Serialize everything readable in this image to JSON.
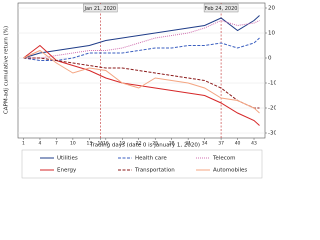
{
  "chart_data": {
    "type": "line",
    "xlabel": "Trading days (date 0 is January 1, 2020)",
    "ylabel": "CAPM-adj cumulative return (%)",
    "x": [
      1,
      4,
      7,
      10,
      13,
      16,
      19,
      22,
      25,
      28,
      31,
      34,
      37,
      40,
      43,
      44
    ],
    "series": [
      {
        "name": "Utilities",
        "color": "#1f3c88",
        "style": "solid",
        "values": [
          0,
          2,
          3,
          4,
          5,
          7,
          8,
          9,
          10,
          11,
          12,
          13,
          16,
          11,
          15,
          17
        ]
      },
      {
        "name": "Health care",
        "color": "#3b5fc0",
        "style": "dashed",
        "values": [
          0,
          -1,
          -1,
          0,
          2,
          2,
          2,
          3,
          4,
          4,
          5,
          5,
          6,
          4,
          6,
          8
        ]
      },
      {
        "name": "Telecom",
        "color": "#d070b0",
        "style": "dotted",
        "values": [
          0,
          0,
          1,
          2,
          3,
          3,
          4,
          6,
          8,
          9,
          10,
          12,
          15,
          13,
          14,
          15
        ]
      },
      {
        "name": "Energy",
        "color": "#d62728",
        "style": "solid",
        "values": [
          0,
          5,
          -1,
          -3,
          -5,
          -8,
          -10,
          -11,
          -12,
          -13,
          -14,
          -15,
          -18,
          -22,
          -25,
          -27
        ]
      },
      {
        "name": "Transportation",
        "color": "#8b1a1a",
        "style": "dashed",
        "values": [
          0,
          0,
          -1,
          -2,
          -3,
          -4,
          -4,
          -5,
          -6,
          -7,
          -8,
          -9,
          -12,
          -17,
          -20,
          -20
        ]
      },
      {
        "name": "Automobiles",
        "color": "#f4a582",
        "style": "solid",
        "values": [
          0,
          3,
          -2,
          -6,
          -4,
          -5,
          -10,
          -12,
          -8,
          -9,
          -10,
          -12,
          -16,
          -17,
          -20,
          -22
        ]
      }
    ],
    "xlim": [
      0,
      45
    ],
    "ylim": [
      -32,
      22
    ],
    "xticks": [
      1,
      4,
      7,
      10,
      13,
      15,
      16,
      19,
      22,
      25,
      28,
      31,
      34,
      37,
      40,
      43
    ],
    "yticks": [
      -30,
      -20,
      -10,
      0,
      10,
      20
    ],
    "grid": true,
    "annotations": [
      {
        "x": 15,
        "text": "Jan 21, 2020"
      },
      {
        "x": 37,
        "text": "Feb 24, 2020"
      }
    ]
  }
}
